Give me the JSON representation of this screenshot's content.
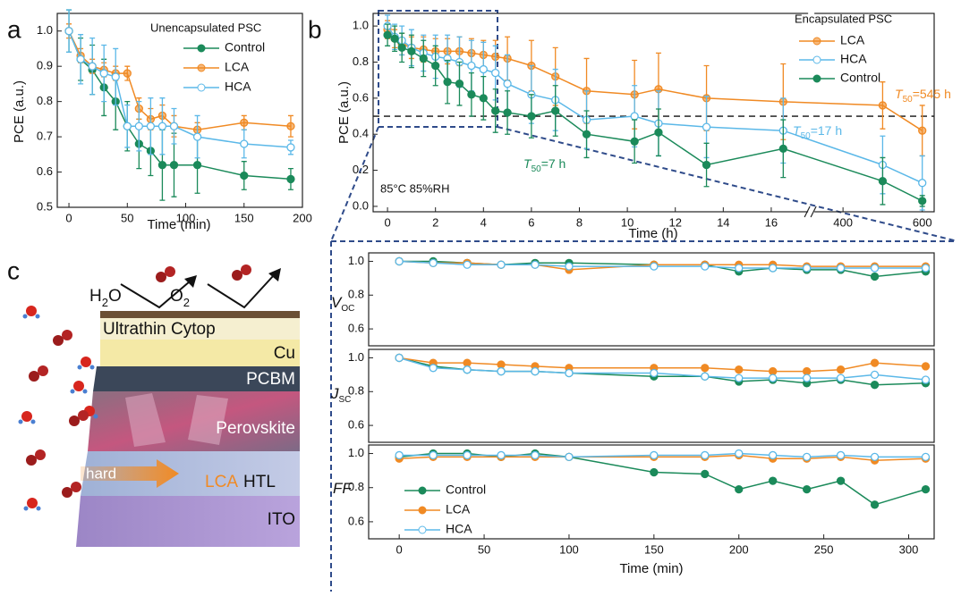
{
  "chart_data": [
    {
      "type": "line",
      "panel": "a",
      "legend_title": "Unencapsulated PSC",
      "xlabel": "Time (min)",
      "ylabel": "PCE (a.u.)",
      "x": [
        0,
        10,
        20,
        30,
        40,
        50,
        60,
        70,
        80,
        90,
        110,
        150,
        190
      ],
      "xlim": [
        -10,
        200
      ],
      "xticks": [
        0,
        50,
        100,
        150,
        200
      ],
      "ylim": [
        0.5,
        1.05
      ],
      "yticks": [
        0.5,
        0.6,
        0.7,
        0.8,
        0.9,
        {
          "value": 1,
          "label": "1.0"
        }
      ],
      "series": [
        {
          "name": "Control",
          "color": "#1b8a5a",
          "marker": "filled",
          "values": [
            1.0,
            0.92,
            0.89,
            0.84,
            0.8,
            0.73,
            0.68,
            0.66,
            0.62,
            0.62,
            0.62,
            0.59,
            0.58
          ],
          "errors": [
            0.06,
            0.06,
            0.07,
            0.08,
            0.08,
            0.07,
            0.07,
            0.07,
            0.1,
            0.09,
            0.08,
            0.04,
            0.03
          ]
        },
        {
          "name": "LCA",
          "color": "#f08a24",
          "marker": "half",
          "values": [
            1.0,
            0.93,
            0.9,
            0.89,
            0.88,
            0.88,
            0.78,
            0.75,
            0.76,
            0.73,
            0.72,
            0.74,
            0.73
          ],
          "errors": [
            0.02,
            0.02,
            0.02,
            0.02,
            0.02,
            0.02,
            0.03,
            0.03,
            0.03,
            0.03,
            0.02,
            0.02,
            0.03
          ]
        },
        {
          "name": "HCA",
          "color": "#5bb8e8",
          "marker": "open",
          "values": [
            1.0,
            0.92,
            0.9,
            0.88,
            0.87,
            0.73,
            0.73,
            0.73,
            0.73,
            0.73,
            0.7,
            0.68,
            0.67
          ],
          "errors": [
            0.06,
            0.07,
            0.08,
            0.08,
            0.08,
            0.06,
            0.07,
            0.08,
            0.08,
            0.05,
            0.06,
            0.04,
            0.02
          ]
        }
      ]
    },
    {
      "type": "line",
      "panel": "b",
      "legend_title": "Encapsulated PSC",
      "xlabel": "Time (h)",
      "ylabel": "PCE (a.u.)",
      "conditions": "85°C 85%RH",
      "x": [
        0,
        0.3,
        0.6,
        1,
        1.5,
        2,
        2.5,
        3,
        3.5,
        4,
        4.5,
        5,
        6,
        7,
        8.3,
        10.3,
        11.3,
        13.3,
        16.5,
        500,
        600
      ],
      "xlim": [
        -0.6,
        630
      ],
      "x_break": [
        17.5,
        330
      ],
      "xticks": [
        0,
        2,
        4,
        6,
        8,
        10,
        12,
        14,
        16,
        400,
        600
      ],
      "ylim": [
        -0.03,
        1.07
      ],
      "yticks": [
        {
          "value": 0,
          "label": "0.0"
        },
        0.2,
        0.4,
        0.6,
        0.8,
        {
          "value": 1,
          "label": "1.0"
        }
      ],
      "hline": 0.5,
      "series": [
        {
          "name": "LCA",
          "color": "#f08a24",
          "marker": "half",
          "t50": {
            "text": "T",
            "subscript": "50",
            "suffix": "=545 h"
          },
          "values": [
            0.98,
            0.93,
            0.9,
            0.88,
            0.87,
            0.86,
            0.86,
            0.86,
            0.85,
            0.84,
            0.83,
            0.82,
            0.78,
            0.72,
            0.64,
            0.62,
            0.65,
            0.6,
            0.58,
            0.56,
            0.42
          ],
          "errors": [
            0.05,
            0.05,
            0.06,
            0.06,
            0.07,
            0.07,
            0.07,
            0.08,
            0.08,
            0.08,
            0.09,
            0.12,
            0.14,
            0.16,
            0.18,
            0.19,
            0.2,
            0.18,
            0.21,
            0.13,
            0.14
          ]
        },
        {
          "name": "HCA",
          "color": "#5bb8e8",
          "marker": "open",
          "t50": {
            "text": "T",
            "subscript": "50",
            "suffix": "=17 h"
          },
          "values": [
            1.0,
            0.94,
            0.92,
            0.88,
            0.85,
            0.83,
            0.82,
            0.8,
            0.78,
            0.76,
            0.74,
            0.68,
            0.62,
            0.59,
            0.48,
            0.5,
            0.46,
            0.44,
            0.42,
            0.23,
            0.13
          ],
          "errors": [
            0.06,
            0.07,
            0.08,
            0.1,
            0.1,
            0.12,
            0.13,
            0.14,
            0.14,
            0.15,
            0.15,
            0.16,
            0.16,
            0.17,
            0.16,
            0.17,
            0.18,
            0.17,
            0.18,
            0.16,
            0.15
          ]
        },
        {
          "name": "Control",
          "color": "#1b8a5a",
          "marker": "filled",
          "t50": {
            "text": "T",
            "subscript": "50",
            "suffix": "=7 h"
          },
          "values": [
            0.95,
            0.93,
            0.88,
            0.86,
            0.82,
            0.78,
            0.69,
            0.68,
            0.62,
            0.6,
            0.53,
            0.52,
            0.5,
            0.53,
            0.4,
            0.36,
            0.41,
            0.23,
            0.32,
            0.14,
            0.03
          ],
          "errors": [
            0.06,
            0.07,
            0.08,
            0.09,
            0.1,
            0.11,
            0.12,
            0.12,
            0.12,
            0.12,
            0.12,
            0.12,
            0.12,
            0.14,
            0.13,
            0.12,
            0.13,
            0.12,
            0.16,
            0.13,
            0.03
          ]
        }
      ]
    },
    {
      "type": "line",
      "ylabel": {
        "text": "V",
        "subscript": "OC"
      },
      "x": [
        0,
        20,
        40,
        60,
        80,
        100,
        150,
        180,
        200,
        220,
        240,
        260,
        280,
        310
      ],
      "xlim": [
        -18,
        315
      ],
      "ylim": [
        0.5,
        1.05
      ],
      "yticks": [
        0.6,
        0.8,
        {
          "value": 1,
          "label": "1.0"
        }
      ],
      "series": [
        {
          "color": "#1b8a5a",
          "marker": "filled",
          "values": [
            1.0,
            1.0,
            0.99,
            0.98,
            0.99,
            0.99,
            0.98,
            0.98,
            0.94,
            0.96,
            0.95,
            0.95,
            0.91,
            0.94
          ]
        },
        {
          "color": "#f08a24",
          "marker": "filled",
          "values": [
            1.0,
            0.99,
            0.99,
            0.98,
            0.98,
            0.95,
            0.98,
            0.98,
            0.98,
            0.98,
            0.97,
            0.97,
            0.97,
            0.97
          ]
        },
        {
          "color": "#5bb8e8",
          "marker": "open",
          "values": [
            1.0,
            0.99,
            0.98,
            0.98,
            0.98,
            0.97,
            0.97,
            0.97,
            0.96,
            0.96,
            0.96,
            0.96,
            0.96,
            0.96
          ]
        }
      ]
    },
    {
      "type": "line",
      "ylabel": {
        "text": "J",
        "subscript": "SC"
      },
      "x": [
        0,
        20,
        40,
        60,
        80,
        100,
        150,
        180,
        200,
        220,
        240,
        260,
        280,
        310
      ],
      "xlim": [
        -18,
        315
      ],
      "ylim": [
        0.5,
        1.05
      ],
      "yticks": [
        0.6,
        0.8,
        {
          "value": 1,
          "label": "1.0"
        }
      ],
      "series": [
        {
          "color": "#1b8a5a",
          "marker": "filled",
          "values": [
            1.0,
            0.95,
            0.93,
            0.92,
            0.92,
            0.91,
            0.89,
            0.89,
            0.86,
            0.87,
            0.85,
            0.87,
            0.84,
            0.85
          ]
        },
        {
          "color": "#f08a24",
          "marker": "filled",
          "values": [
            1.0,
            0.97,
            0.97,
            0.96,
            0.95,
            0.94,
            0.94,
            0.94,
            0.93,
            0.92,
            0.92,
            0.93,
            0.97,
            0.95
          ]
        },
        {
          "color": "#5bb8e8",
          "marker": "open",
          "values": [
            1.0,
            0.94,
            0.93,
            0.92,
            0.92,
            0.91,
            0.91,
            0.89,
            0.88,
            0.88,
            0.88,
            0.88,
            0.9,
            0.87
          ]
        }
      ]
    },
    {
      "type": "line",
      "ylabel": {
        "text": "FF"
      },
      "xlabel": "Time (min)",
      "x": [
        0,
        20,
        40,
        60,
        80,
        100,
        150,
        180,
        200,
        220,
        240,
        260,
        280,
        310
      ],
      "xlim": [
        -18,
        315
      ],
      "xticks": [
        0,
        50,
        100,
        150,
        200,
        250,
        300
      ],
      "ylim": [
        0.5,
        1.05
      ],
      "yticks": [
        0.6,
        0.8,
        {
          "value": 1,
          "label": "1.0"
        }
      ],
      "series": [
        {
          "name": "Control",
          "color": "#1b8a5a",
          "marker": "filled",
          "values": [
            0.98,
            1.0,
            1.0,
            0.98,
            1.0,
            0.98,
            0.89,
            0.88,
            0.79,
            0.84,
            0.79,
            0.84,
            0.7,
            0.79
          ]
        },
        {
          "name": "LCA",
          "color": "#f08a24",
          "marker": "filled",
          "values": [
            0.97,
            0.98,
            0.98,
            0.98,
            0.98,
            0.98,
            0.98,
            0.98,
            0.99,
            0.97,
            0.97,
            0.98,
            0.96,
            0.97
          ]
        },
        {
          "name": "HCA",
          "color": "#5bb8e8",
          "marker": "open",
          "values": [
            0.99,
            0.99,
            0.99,
            0.99,
            0.99,
            0.98,
            0.99,
            0.99,
            1.0,
            0.99,
            0.98,
            0.99,
            0.98,
            0.98
          ]
        }
      ]
    }
  ],
  "illustration": {
    "panel": "c",
    "water": {
      "text": "H",
      "subscript": "2",
      "suffix": "O"
    },
    "oxygen": {
      "text": "O",
      "subscript": "2"
    },
    "layers": [
      "Ultrathin Cytop",
      "Cu",
      "PCBM",
      "Perovskite"
    ],
    "arrow_label": "hard",
    "htl_material": "LCA",
    "htl": "HTL",
    "ito": "ITO"
  }
}
